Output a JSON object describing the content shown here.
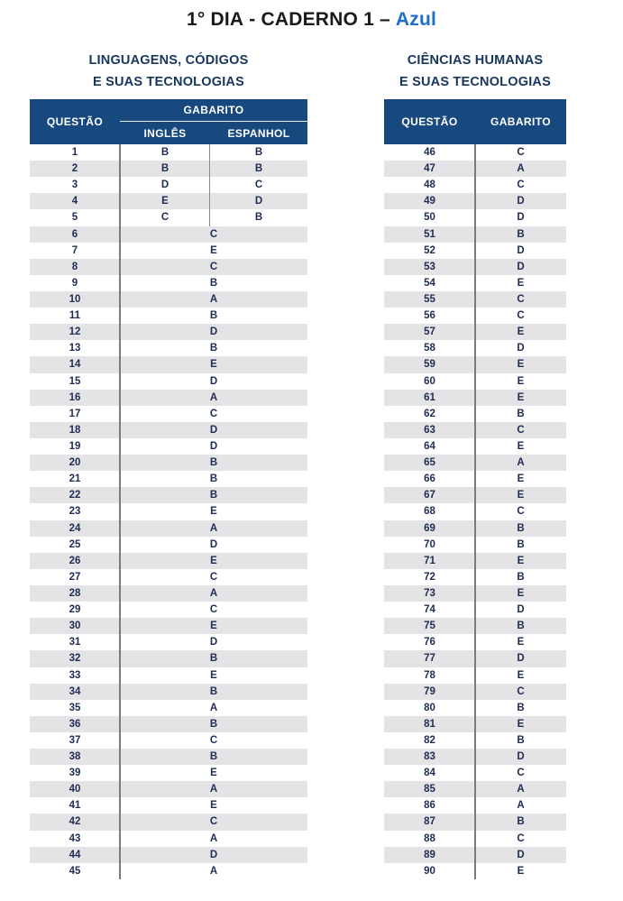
{
  "title": {
    "day": "1° DIA",
    "middle": " - CADERNO 1 – ",
    "booklet": "Azul"
  },
  "colors": {
    "header_bg": "#17497E",
    "stripe": "#E4E4E6",
    "cell_text": "#1F2C52",
    "heading_navy": "#17365F",
    "divider": "#7B7B7B",
    "azul": "#1B70CE",
    "title_black": "#1A1A1A"
  },
  "left_table": {
    "heading_line1": "LINGUAGENS, CÓDIGOS",
    "heading_line2": "E SUAS TECNOLOGIAS",
    "header": {
      "questao": "QUESTÃO",
      "gabarito": "GABARITO",
      "ingles": "INGLÊS",
      "espanhol": "ESPANHOL"
    },
    "rows": [
      {
        "q": "1",
        "en": "B",
        "es": "B"
      },
      {
        "q": "2",
        "en": "B",
        "es": "B"
      },
      {
        "q": "3",
        "en": "D",
        "es": "C"
      },
      {
        "q": "4",
        "en": "E",
        "es": "D"
      },
      {
        "q": "5",
        "en": "C",
        "es": "B"
      },
      {
        "q": "6",
        "a": "C"
      },
      {
        "q": "7",
        "a": "E"
      },
      {
        "q": "8",
        "a": "C"
      },
      {
        "q": "9",
        "a": "B"
      },
      {
        "q": "10",
        "a": "A"
      },
      {
        "q": "11",
        "a": "B"
      },
      {
        "q": "12",
        "a": "D"
      },
      {
        "q": "13",
        "a": "B"
      },
      {
        "q": "14",
        "a": "E"
      },
      {
        "q": "15",
        "a": "D"
      },
      {
        "q": "16",
        "a": "A"
      },
      {
        "q": "17",
        "a": "C"
      },
      {
        "q": "18",
        "a": "D"
      },
      {
        "q": "19",
        "a": "D"
      },
      {
        "q": "20",
        "a": "B"
      },
      {
        "q": "21",
        "a": "B"
      },
      {
        "q": "22",
        "a": "B"
      },
      {
        "q": "23",
        "a": "E"
      },
      {
        "q": "24",
        "a": "A"
      },
      {
        "q": "25",
        "a": "D"
      },
      {
        "q": "26",
        "a": "E"
      },
      {
        "q": "27",
        "a": "C"
      },
      {
        "q": "28",
        "a": "A"
      },
      {
        "q": "29",
        "a": "C"
      },
      {
        "q": "30",
        "a": "E"
      },
      {
        "q": "31",
        "a": "D"
      },
      {
        "q": "32",
        "a": "B"
      },
      {
        "q": "33",
        "a": "E"
      },
      {
        "q": "34",
        "a": "B"
      },
      {
        "q": "35",
        "a": "A"
      },
      {
        "q": "36",
        "a": "B"
      },
      {
        "q": "37",
        "a": "C"
      },
      {
        "q": "38",
        "a": "B"
      },
      {
        "q": "39",
        "a": "E"
      },
      {
        "q": "40",
        "a": "A"
      },
      {
        "q": "41",
        "a": "E"
      },
      {
        "q": "42",
        "a": "C"
      },
      {
        "q": "43",
        "a": "A"
      },
      {
        "q": "44",
        "a": "D"
      },
      {
        "q": "45",
        "a": "A"
      }
    ]
  },
  "right_table": {
    "heading_line1": "CIÊNCIAS HUMANAS",
    "heading_line2": "E SUAS TECNOLOGIAS",
    "header": {
      "questao": "QUESTÃO",
      "gabarito": "GABARITO"
    },
    "rows": [
      {
        "q": "46",
        "a": "C"
      },
      {
        "q": "47",
        "a": "A"
      },
      {
        "q": "48",
        "a": "C"
      },
      {
        "q": "49",
        "a": "D"
      },
      {
        "q": "50",
        "a": "D"
      },
      {
        "q": "51",
        "a": "B"
      },
      {
        "q": "52",
        "a": "D"
      },
      {
        "q": "53",
        "a": "D"
      },
      {
        "q": "54",
        "a": "E"
      },
      {
        "q": "55",
        "a": "C"
      },
      {
        "q": "56",
        "a": "C"
      },
      {
        "q": "57",
        "a": "E"
      },
      {
        "q": "58",
        "a": "D"
      },
      {
        "q": "59",
        "a": "E"
      },
      {
        "q": "60",
        "a": "E"
      },
      {
        "q": "61",
        "a": "E"
      },
      {
        "q": "62",
        "a": "B"
      },
      {
        "q": "63",
        "a": "C"
      },
      {
        "q": "64",
        "a": "E"
      },
      {
        "q": "65",
        "a": "A"
      },
      {
        "q": "66",
        "a": "E"
      },
      {
        "q": "67",
        "a": "E"
      },
      {
        "q": "68",
        "a": "C"
      },
      {
        "q": "69",
        "a": "B"
      },
      {
        "q": "70",
        "a": "B"
      },
      {
        "q": "71",
        "a": "E"
      },
      {
        "q": "72",
        "a": "B"
      },
      {
        "q": "73",
        "a": "E"
      },
      {
        "q": "74",
        "a": "D"
      },
      {
        "q": "75",
        "a": "B"
      },
      {
        "q": "76",
        "a": "E"
      },
      {
        "q": "77",
        "a": "D"
      },
      {
        "q": "78",
        "a": "E"
      },
      {
        "q": "79",
        "a": "C"
      },
      {
        "q": "80",
        "a": "B"
      },
      {
        "q": "81",
        "a": "E"
      },
      {
        "q": "82",
        "a": "B"
      },
      {
        "q": "83",
        "a": "D"
      },
      {
        "q": "84",
        "a": "C"
      },
      {
        "q": "85",
        "a": "A"
      },
      {
        "q": "86",
        "a": "A"
      },
      {
        "q": "87",
        "a": "B"
      },
      {
        "q": "88",
        "a": "C"
      },
      {
        "q": "89",
        "a": "D"
      },
      {
        "q": "90",
        "a": "E"
      }
    ]
  }
}
